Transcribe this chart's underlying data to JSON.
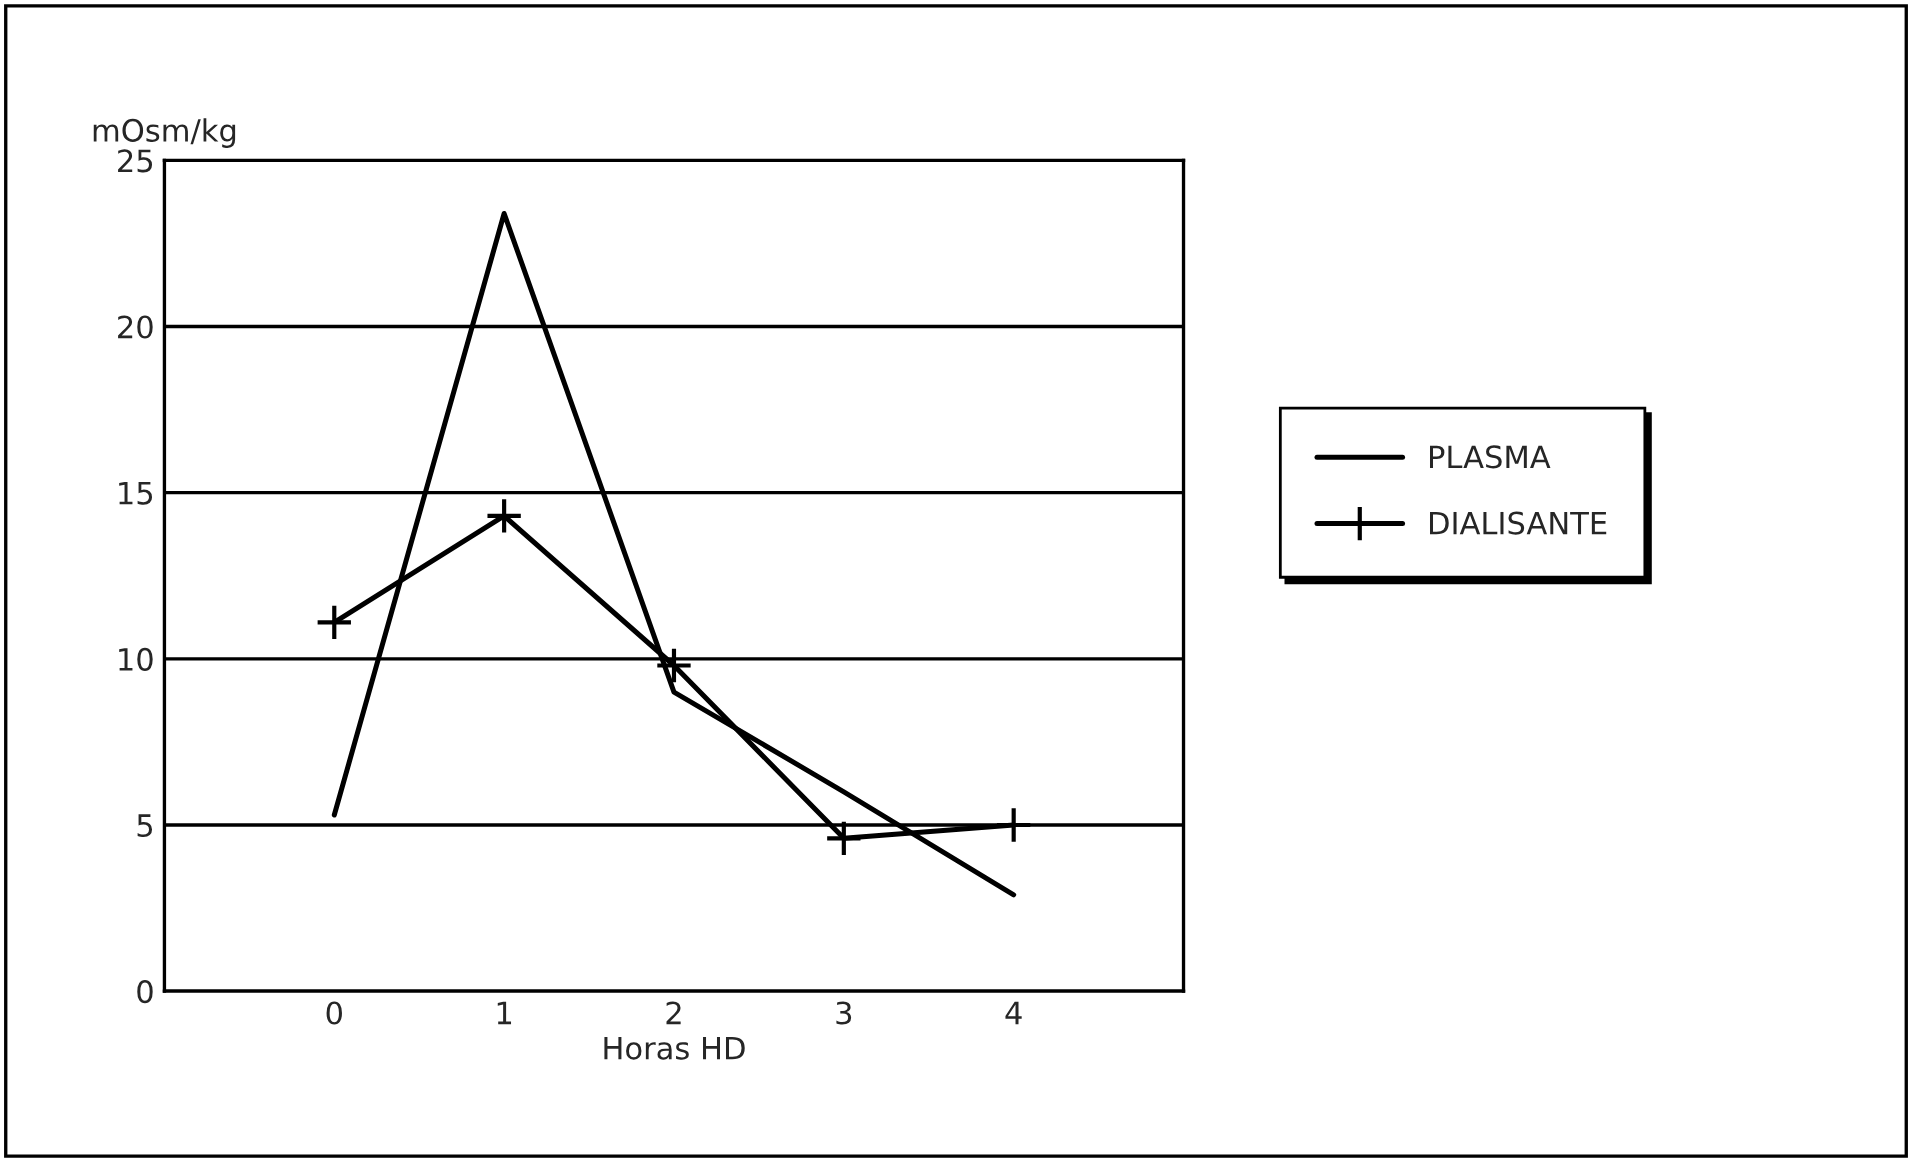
{
  "chart_data": {
    "type": "line",
    "ylabel": "mOsm/kg",
    "xlabel": "Horas HD",
    "x": [
      0,
      1,
      2,
      3,
      4
    ],
    "series": [
      {
        "name": "PLASMA",
        "color": "#000000",
        "marker": "none",
        "values": [
          5.3,
          23.4,
          9.0,
          6.0,
          2.9
        ]
      },
      {
        "name": "DIALISANTE",
        "color": "#000000",
        "marker": "cross",
        "values": [
          11.1,
          14.3,
          9.8,
          4.6,
          5.0
        ]
      }
    ],
    "xlim": [
      -1,
      5
    ],
    "xticks": [
      0,
      1,
      2,
      3,
      4
    ],
    "ylim": [
      0,
      25
    ],
    "yticks": [
      0,
      5,
      10,
      15,
      20,
      25
    ],
    "grid": "y",
    "legend": "right",
    "line_style": "solid"
  }
}
